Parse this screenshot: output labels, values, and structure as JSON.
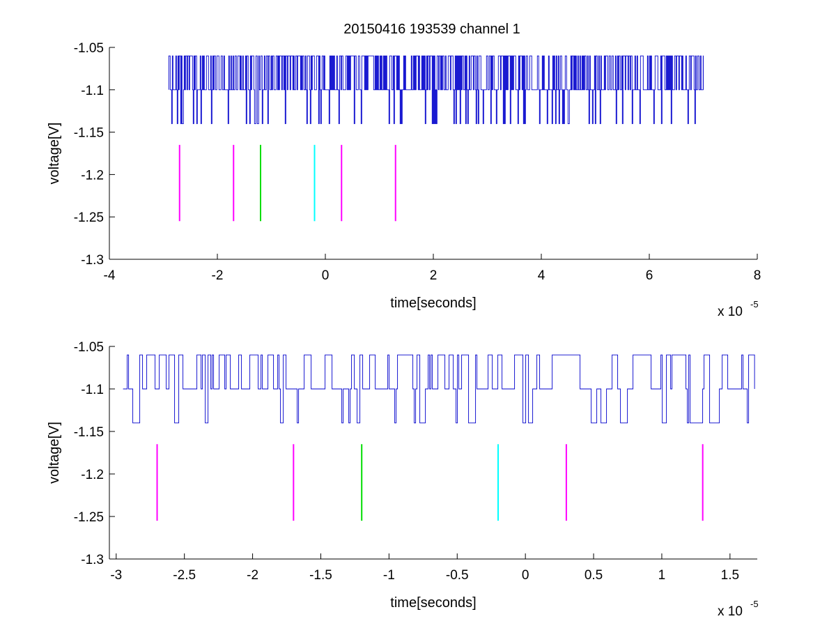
{
  "figure": {
    "title": "20150416 193539 channel 1"
  },
  "colors": {
    "trace": "#0000cc",
    "magenta": "#ff00ff",
    "green": "#00dd00",
    "cyan": "#00ffff",
    "axis": "#000000"
  },
  "chart_data": [
    {
      "type": "line",
      "title": "20150416 193539 channel 1",
      "xlabel": "time[seconds]",
      "ylabel": "voltage[V]",
      "x_multiplier_label": "x 10",
      "x_multiplier_exp": "-5",
      "xlim": [
        -4,
        8
      ],
      "ylim": [
        -1.3,
        -1.05
      ],
      "xticks": [
        -4,
        -2,
        0,
        2,
        4,
        6,
        8
      ],
      "xtick_labels": [
        "-4",
        "-2",
        "0",
        "2",
        "4",
        "6",
        "8"
      ],
      "yticks": [
        -1.05,
        -1.1,
        -1.15,
        -1.2,
        -1.25,
        -1.3
      ],
      "ytick_labels": [
        "-1.05",
        "-1.1",
        "-1.15",
        "-1.2",
        "-1.25",
        "-1.3"
      ],
      "grid": false,
      "trace": {
        "x_range": [
          -2.9,
          7.0
        ],
        "baseline": -1.1,
        "high": -1.06,
        "low": -1.14,
        "description_levels": [
          -1.06,
          -1.1,
          -1.14
        ]
      },
      "markers": [
        {
          "x": -2.7,
          "color": "magenta",
          "y_range": [
            -1.165,
            -1.255
          ]
        },
        {
          "x": -1.7,
          "color": "magenta",
          "y_range": [
            -1.165,
            -1.255
          ]
        },
        {
          "x": -1.2,
          "color": "green",
          "y_range": [
            -1.165,
            -1.255
          ]
        },
        {
          "x": -0.2,
          "color": "cyan",
          "y_range": [
            -1.165,
            -1.255
          ]
        },
        {
          "x": 0.3,
          "color": "magenta",
          "y_range": [
            -1.165,
            -1.255
          ]
        },
        {
          "x": 1.3,
          "color": "magenta",
          "y_range": [
            -1.165,
            -1.255
          ]
        }
      ]
    },
    {
      "type": "line",
      "title": "",
      "xlabel": "time[seconds]",
      "ylabel": "voltage[V]",
      "x_multiplier_label": "x 10",
      "x_multiplier_exp": "-5",
      "xlim": [
        -3.05,
        1.7
      ],
      "ylim": [
        -1.3,
        -1.05
      ],
      "xticks": [
        -3,
        -2.5,
        -2,
        -1.5,
        -1,
        -0.5,
        0,
        0.5,
        1,
        1.5
      ],
      "xtick_labels": [
        "-3",
        "-2.5",
        "-2",
        "-1.5",
        "-1",
        "-0.5",
        "0",
        "0.5",
        "1",
        "1.5"
      ],
      "yticks": [
        -1.05,
        -1.1,
        -1.15,
        -1.2,
        -1.25,
        -1.3
      ],
      "ytick_labels": [
        "-1.05",
        "-1.1",
        "-1.15",
        "-1.2",
        "-1.25",
        "-1.3"
      ],
      "grid": false,
      "trace": {
        "x_range": [
          -2.95,
          1.68
        ],
        "baseline": -1.1,
        "high": -1.06,
        "low": -1.14
      },
      "markers": [
        {
          "x": -2.7,
          "color": "magenta",
          "y_range": [
            -1.165,
            -1.255
          ]
        },
        {
          "x": -1.7,
          "color": "magenta",
          "y_range": [
            -1.165,
            -1.255
          ]
        },
        {
          "x": -1.2,
          "color": "green",
          "y_range": [
            -1.165,
            -1.255
          ]
        },
        {
          "x": -0.2,
          "color": "cyan",
          "y_range": [
            -1.165,
            -1.255
          ]
        },
        {
          "x": 0.3,
          "color": "magenta",
          "y_range": [
            -1.165,
            -1.255
          ]
        },
        {
          "x": 1.3,
          "color": "magenta",
          "y_range": [
            -1.165,
            -1.255
          ]
        }
      ]
    }
  ]
}
